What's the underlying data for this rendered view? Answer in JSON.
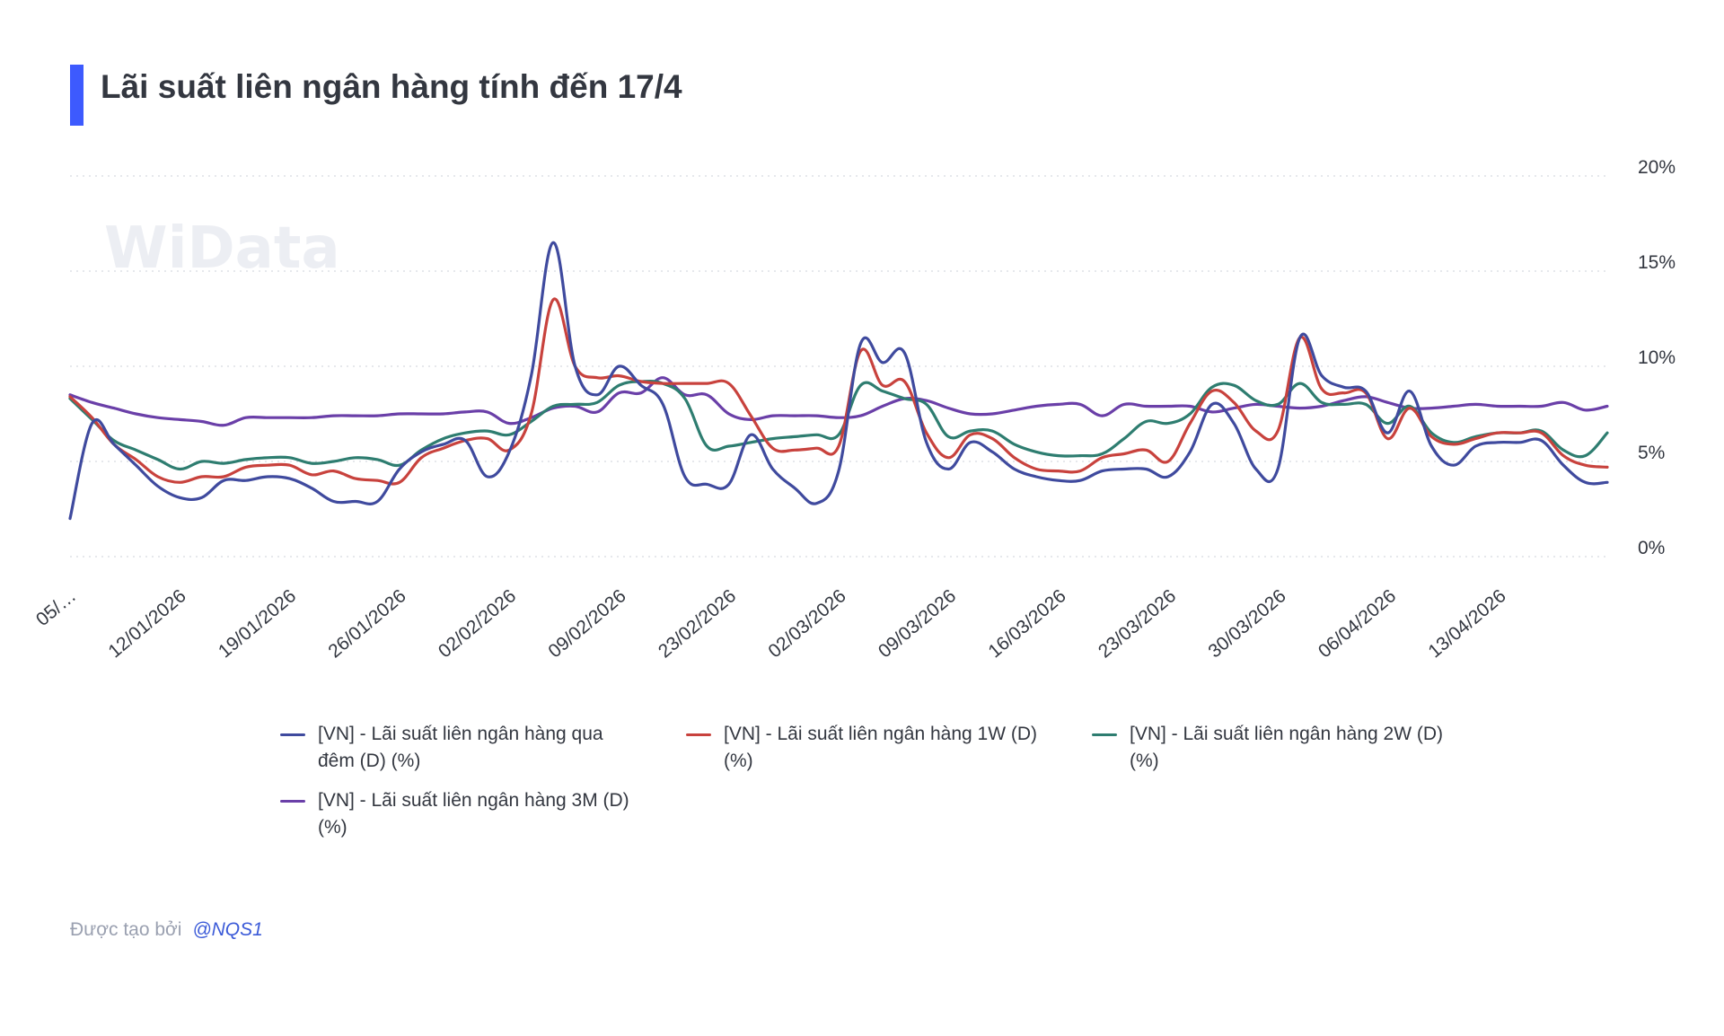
{
  "title": "Lãi suất liên ngân hàng tính đến 17/4",
  "watermark": "WiData",
  "accent_color": "#3d5afe",
  "footer": {
    "prefix": "Được tạo bởi",
    "handle": "@NQS1"
  },
  "chart_data": {
    "type": "line",
    "title": "Lãi suất liên ngân hàng tính đến 17/4",
    "xlabel": "",
    "ylabel": "",
    "ylim": [
      0,
      20
    ],
    "y_ticks": [
      0,
      5,
      10,
      15,
      20
    ],
    "y_tick_labels": [
      "0%",
      "5%",
      "10%",
      "15%",
      "20%"
    ],
    "y_axis_side": "right",
    "grid": true,
    "legend_position": "bottom",
    "x_tick_labels": [
      "05/…",
      "12/01/2026",
      "19/01/2026",
      "26/01/2026",
      "02/02/2026",
      "09/02/2026",
      "23/02/2026",
      "02/03/2026",
      "09/03/2026",
      "16/03/2026",
      "23/03/2026",
      "30/03/2026",
      "06/04/2026",
      "13/04/2026"
    ],
    "x_count": 71,
    "series": [
      {
        "name": "[VN] - Lãi suất liên ngân hàng qua đêm (D) (%)",
        "color": "#3f4a9e",
        "values": [
          2,
          7,
          5.9,
          4.8,
          3.7,
          3.1,
          3.1,
          4,
          4,
          4.2,
          4.1,
          3.6,
          2.9,
          2.9,
          2.9,
          4.6,
          5.5,
          5.9,
          6.1,
          4.2,
          5.5,
          9.5,
          16.5,
          10,
          8.5,
          10,
          9,
          8,
          4.2,
          3.8,
          3.8,
          6.4,
          4.6,
          3.6,
          2.8,
          4.5,
          11.2,
          10.2,
          10.7,
          6,
          4.6,
          6,
          5.5,
          4.6,
          4.2,
          4,
          4,
          4.5,
          4.6,
          4.6,
          4.2,
          5.5,
          8,
          7,
          4.6,
          4.6,
          11.5,
          9.5,
          8.9,
          8.7,
          6.5,
          8.7,
          5.8,
          4.8,
          5.8,
          6,
          6,
          6.1,
          4.8,
          3.9,
          3.9
        ]
      },
      {
        "name": "[VN] - Lãi suất liên ngân hàng 1W (D) (%)",
        "color": "#c8423d",
        "values": [
          8.4,
          7.3,
          5.9,
          5.1,
          4.2,
          3.9,
          4.2,
          4.2,
          4.7,
          4.8,
          4.8,
          4.3,
          4.5,
          4.1,
          4,
          3.9,
          5.2,
          5.7,
          6.1,
          6.2,
          5.6,
          7.5,
          13.5,
          10,
          9.4,
          9.5,
          9.2,
          9.1,
          9.1,
          9.1,
          9.1,
          7.4,
          5.7,
          5.6,
          5.7,
          5.8,
          10.8,
          9,
          9.2,
          6.5,
          5.2,
          6.4,
          6.2,
          5.2,
          4.6,
          4.5,
          4.5,
          5.2,
          5.4,
          5.6,
          5,
          7,
          8.7,
          8.1,
          6.6,
          6.6,
          11.5,
          8.8,
          8.6,
          8.6,
          6.2,
          7.8,
          6.3,
          5.9,
          6.2,
          6.5,
          6.5,
          6.5,
          5.3,
          4.8,
          4.7
        ]
      },
      {
        "name": "[VN] - Lãi suất liên ngân hàng 2W (D) (%)",
        "color": "#2e7d70",
        "values": [
          8.3,
          7.2,
          6.1,
          5.6,
          5.1,
          4.6,
          5,
          4.9,
          5.1,
          5.2,
          5.2,
          4.9,
          5,
          5.2,
          5.1,
          4.8,
          5.6,
          6.2,
          6.5,
          6.6,
          6.4,
          7.1,
          7.9,
          8,
          8.1,
          9,
          9.2,
          9.1,
          8.3,
          5.8,
          5.8,
          6,
          6.2,
          6.3,
          6.4,
          6.4,
          9,
          8.7,
          8.3,
          8,
          6.3,
          6.6,
          6.6,
          5.9,
          5.5,
          5.3,
          5.3,
          5.4,
          6.2,
          7.1,
          7,
          7.5,
          8.9,
          9,
          8.2,
          8,
          9.1,
          8.1,
          8,
          8,
          7,
          7.9,
          6.5,
          6,
          6.3,
          6.5,
          6.5,
          6.6,
          5.6,
          5.3,
          6.5
        ]
      },
      {
        "name": "[VN] - Lãi suất liên ngân hàng 3M (D) (%)",
        "color": "#6a3fa8",
        "values": [
          8.5,
          8.1,
          7.8,
          7.5,
          7.3,
          7.2,
          7.1,
          6.9,
          7.3,
          7.3,
          7.3,
          7.3,
          7.4,
          7.4,
          7.4,
          7.5,
          7.5,
          7.5,
          7.6,
          7.6,
          7,
          7.3,
          7.8,
          7.9,
          7.6,
          8.6,
          8.6,
          9.4,
          8.5,
          8.5,
          7.5,
          7.2,
          7.4,
          7.4,
          7.4,
          7.3,
          7.4,
          7.9,
          8.3,
          8.2,
          7.8,
          7.5,
          7.5,
          7.7,
          7.9,
          8,
          8,
          7.4,
          8,
          7.9,
          7.9,
          7.9,
          7.6,
          7.8,
          8,
          7.9,
          7.8,
          7.9,
          8.2,
          8.4,
          8.1,
          7.8,
          7.8,
          7.9,
          8,
          7.9,
          7.9,
          7.9,
          8.1,
          7.7,
          7.9
        ]
      }
    ]
  }
}
